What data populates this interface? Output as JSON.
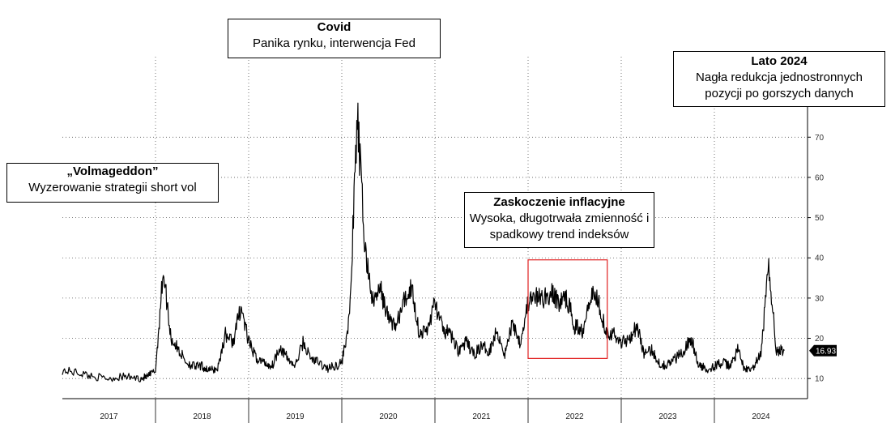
{
  "chart_data": {
    "type": "line",
    "x_start": "2017",
    "x_end": "2024",
    "ylim": [
      5,
      90
    ],
    "yticks": [
      10,
      20,
      30,
      40,
      50,
      60,
      70
    ],
    "x_tick_labels": [
      "2017",
      "2018",
      "2019",
      "2020",
      "2021",
      "2022",
      "2023",
      "2024"
    ],
    "last_value": "16.93",
    "grid": true,
    "series": [
      {
        "points": [
          [
            "2017-01",
            12
          ],
          [
            "2017-03",
            11.5
          ],
          [
            "2017-05",
            10.5
          ],
          [
            "2017-07",
            10
          ],
          [
            "2017-09",
            10.5
          ],
          [
            "2017-11",
            10
          ],
          [
            "2017-12",
            10.5
          ],
          [
            "2018-01",
            12
          ],
          [
            "2018-02",
            37
          ],
          [
            "2018-03",
            20
          ],
          [
            "2018-04",
            17
          ],
          [
            "2018-05",
            14
          ],
          [
            "2018-06",
            13
          ],
          [
            "2018-07",
            13
          ],
          [
            "2018-08",
            12
          ],
          [
            "2018-09",
            12.5
          ],
          [
            "2018-10",
            21
          ],
          [
            "2018-11",
            19
          ],
          [
            "2018-12",
            28
          ],
          [
            "2019-01",
            19
          ],
          [
            "2019-02",
            15
          ],
          [
            "2019-03",
            14
          ],
          [
            "2019-04",
            13
          ],
          [
            "2019-05",
            18
          ],
          [
            "2019-06",
            15
          ],
          [
            "2019-07",
            13
          ],
          [
            "2019-08",
            19
          ],
          [
            "2019-09",
            15
          ],
          [
            "2019-10",
            14
          ],
          [
            "2019-11",
            12.5
          ],
          [
            "2019-12",
            13
          ],
          [
            "2020-01",
            14
          ],
          [
            "2020-02",
            25
          ],
          [
            "2020-03",
            75
          ],
          [
            "2020-04",
            42
          ],
          [
            "2020-05",
            29
          ],
          [
            "2020-06",
            32
          ],
          [
            "2020-07",
            25
          ],
          [
            "2020-08",
            23
          ],
          [
            "2020-09",
            29
          ],
          [
            "2020-10",
            33
          ],
          [
            "2020-11",
            21
          ],
          [
            "2020-12",
            22
          ],
          [
            "2021-01",
            29
          ],
          [
            "2021-02",
            22
          ],
          [
            "2021-03",
            21
          ],
          [
            "2021-04",
            17
          ],
          [
            "2021-05",
            19
          ],
          [
            "2021-06",
            16
          ],
          [
            "2021-07",
            18
          ],
          [
            "2021-08",
            17
          ],
          [
            "2021-09",
            22
          ],
          [
            "2021-10",
            16
          ],
          [
            "2021-11",
            24
          ],
          [
            "2021-12",
            19
          ],
          [
            "2022-01",
            29
          ],
          [
            "2022-02",
            30
          ],
          [
            "2022-03",
            30
          ],
          [
            "2022-04",
            31
          ],
          [
            "2022-05",
            29
          ],
          [
            "2022-06",
            30
          ],
          [
            "2022-07",
            23
          ],
          [
            "2022-08",
            22
          ],
          [
            "2022-09",
            31
          ],
          [
            "2022-10",
            30
          ],
          [
            "2022-11",
            22
          ],
          [
            "2022-12",
            21
          ],
          [
            "2023-01",
            19
          ],
          [
            "2023-02",
            20
          ],
          [
            "2023-03",
            23
          ],
          [
            "2023-04",
            16
          ],
          [
            "2023-05",
            17
          ],
          [
            "2023-06",
            13.5
          ],
          [
            "2023-07",
            13.5
          ],
          [
            "2023-08",
            15
          ],
          [
            "2023-09",
            17
          ],
          [
            "2023-10",
            20
          ],
          [
            "2023-11",
            13
          ],
          [
            "2023-12",
            12.5
          ],
          [
            "2024-01",
            13
          ],
          [
            "2024-02",
            14
          ],
          [
            "2024-03",
            13
          ],
          [
            "2024-04",
            17
          ],
          [
            "2024-05",
            12
          ],
          [
            "2024-06",
            12.5
          ],
          [
            "2024-07",
            16
          ],
          [
            "2024-08",
            38
          ],
          [
            "2024-09",
            17
          ],
          [
            "2024-10",
            16.93
          ]
        ]
      }
    ]
  },
  "annotations": [
    {
      "id": "volmageddon",
      "title": "„Volmageddon”",
      "lines": [
        "Wyzerowanie strategii short vol"
      ]
    },
    {
      "id": "covid",
      "title": "Covid",
      "lines": [
        "Panika rynku, interwencja Fed"
      ]
    },
    {
      "id": "inflation",
      "title": "Zaskoczenie inflacyjne",
      "lines": [
        "Wysoka, długotrwała zmienność i",
        "spadkowy trend indeksów"
      ]
    },
    {
      "id": "summer2024",
      "title": "Lato 2024",
      "lines": [
        "Nagła redukcja jednostronnych",
        "pozycji po gorszych danych"
      ]
    }
  ],
  "colors": {
    "line": "#000000",
    "grid": "#555555",
    "highlight_box": "#e02020",
    "last_value_badge": "#000000"
  }
}
